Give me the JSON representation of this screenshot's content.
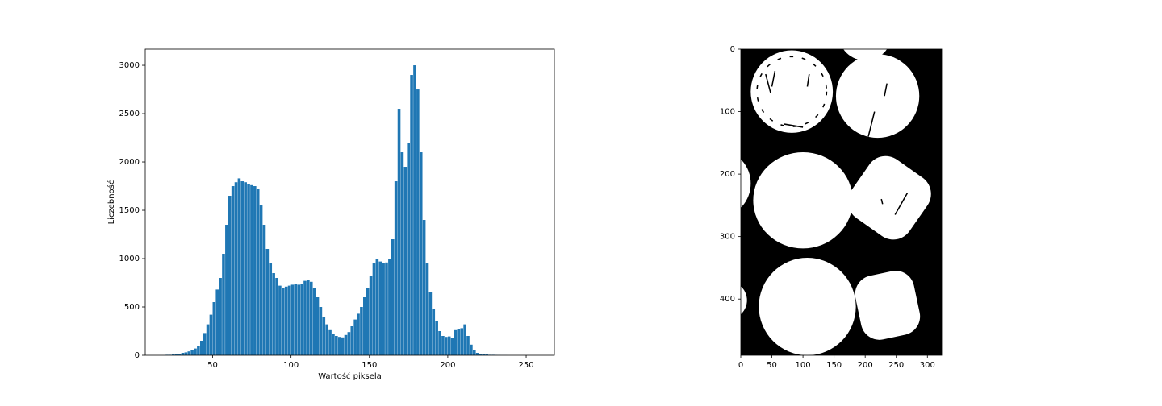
{
  "chart_data": [
    {
      "type": "histogram",
      "xlabel": "Wartość piksela",
      "ylabel": "Liczebność",
      "color": "#1f77b4",
      "bins": [
        20,
        22,
        24,
        26,
        28,
        30,
        32,
        34,
        36,
        38,
        40,
        42,
        44,
        46,
        48,
        50,
        52,
        54,
        56,
        58,
        60,
        62,
        64,
        66,
        68,
        70,
        72,
        74,
        76,
        78,
        80,
        82,
        84,
        86,
        88,
        90,
        92,
        94,
        96,
        98,
        100,
        102,
        104,
        106,
        108,
        110,
        112,
        114,
        116,
        118,
        120,
        122,
        124,
        126,
        128,
        130,
        132,
        134,
        136,
        138,
        140,
        142,
        144,
        146,
        148,
        150,
        152,
        154,
        156,
        158,
        160,
        162,
        164,
        166,
        168,
        170,
        172,
        174,
        176,
        178,
        180,
        182,
        184,
        186,
        188,
        190,
        192,
        194,
        196,
        198,
        200,
        202,
        204,
        206,
        208,
        210,
        212,
        214,
        216,
        218,
        220,
        222,
        224,
        226,
        228,
        230,
        232,
        234,
        236,
        238,
        240,
        242,
        244,
        246,
        248,
        250,
        252,
        254,
        256
      ],
      "values": [
        5,
        5,
        8,
        10,
        15,
        25,
        30,
        40,
        50,
        70,
        100,
        150,
        230,
        320,
        420,
        550,
        680,
        800,
        1050,
        1350,
        1650,
        1750,
        1790,
        1830,
        1800,
        1790,
        1770,
        1760,
        1750,
        1720,
        1550,
        1350,
        1100,
        950,
        850,
        800,
        720,
        700,
        710,
        720,
        730,
        740,
        730,
        740,
        770,
        775,
        760,
        700,
        600,
        500,
        400,
        320,
        260,
        220,
        200,
        190,
        185,
        210,
        240,
        300,
        370,
        430,
        500,
        600,
        700,
        820,
        950,
        1000,
        970,
        950,
        960,
        1000,
        1200,
        1800,
        2550,
        2100,
        1950,
        2200,
        2900,
        3000,
        2750,
        2100,
        1400,
        950,
        650,
        480,
        350,
        250,
        200,
        190,
        195,
        180,
        260,
        270,
        280,
        320,
        200,
        110,
        50,
        25,
        15,
        10,
        8,
        5,
        5,
        3,
        2,
        1,
        1,
        0,
        0,
        0,
        0,
        0,
        0,
        0,
        0,
        0
      ],
      "xlim": [
        7,
        268
      ],
      "ylim": [
        0,
        3167
      ],
      "xticks": [
        50,
        100,
        150,
        200,
        250
      ],
      "yticks": [
        0,
        500,
        1000,
        1500,
        2000,
        2500,
        3000
      ]
    },
    {
      "type": "image",
      "xlim": [
        0,
        323
      ],
      "ylim": [
        490,
        0
      ],
      "xticks": [
        0,
        50,
        100,
        150,
        200,
        250,
        300
      ],
      "yticks": [
        0,
        100,
        200,
        300,
        400
      ]
    }
  ]
}
